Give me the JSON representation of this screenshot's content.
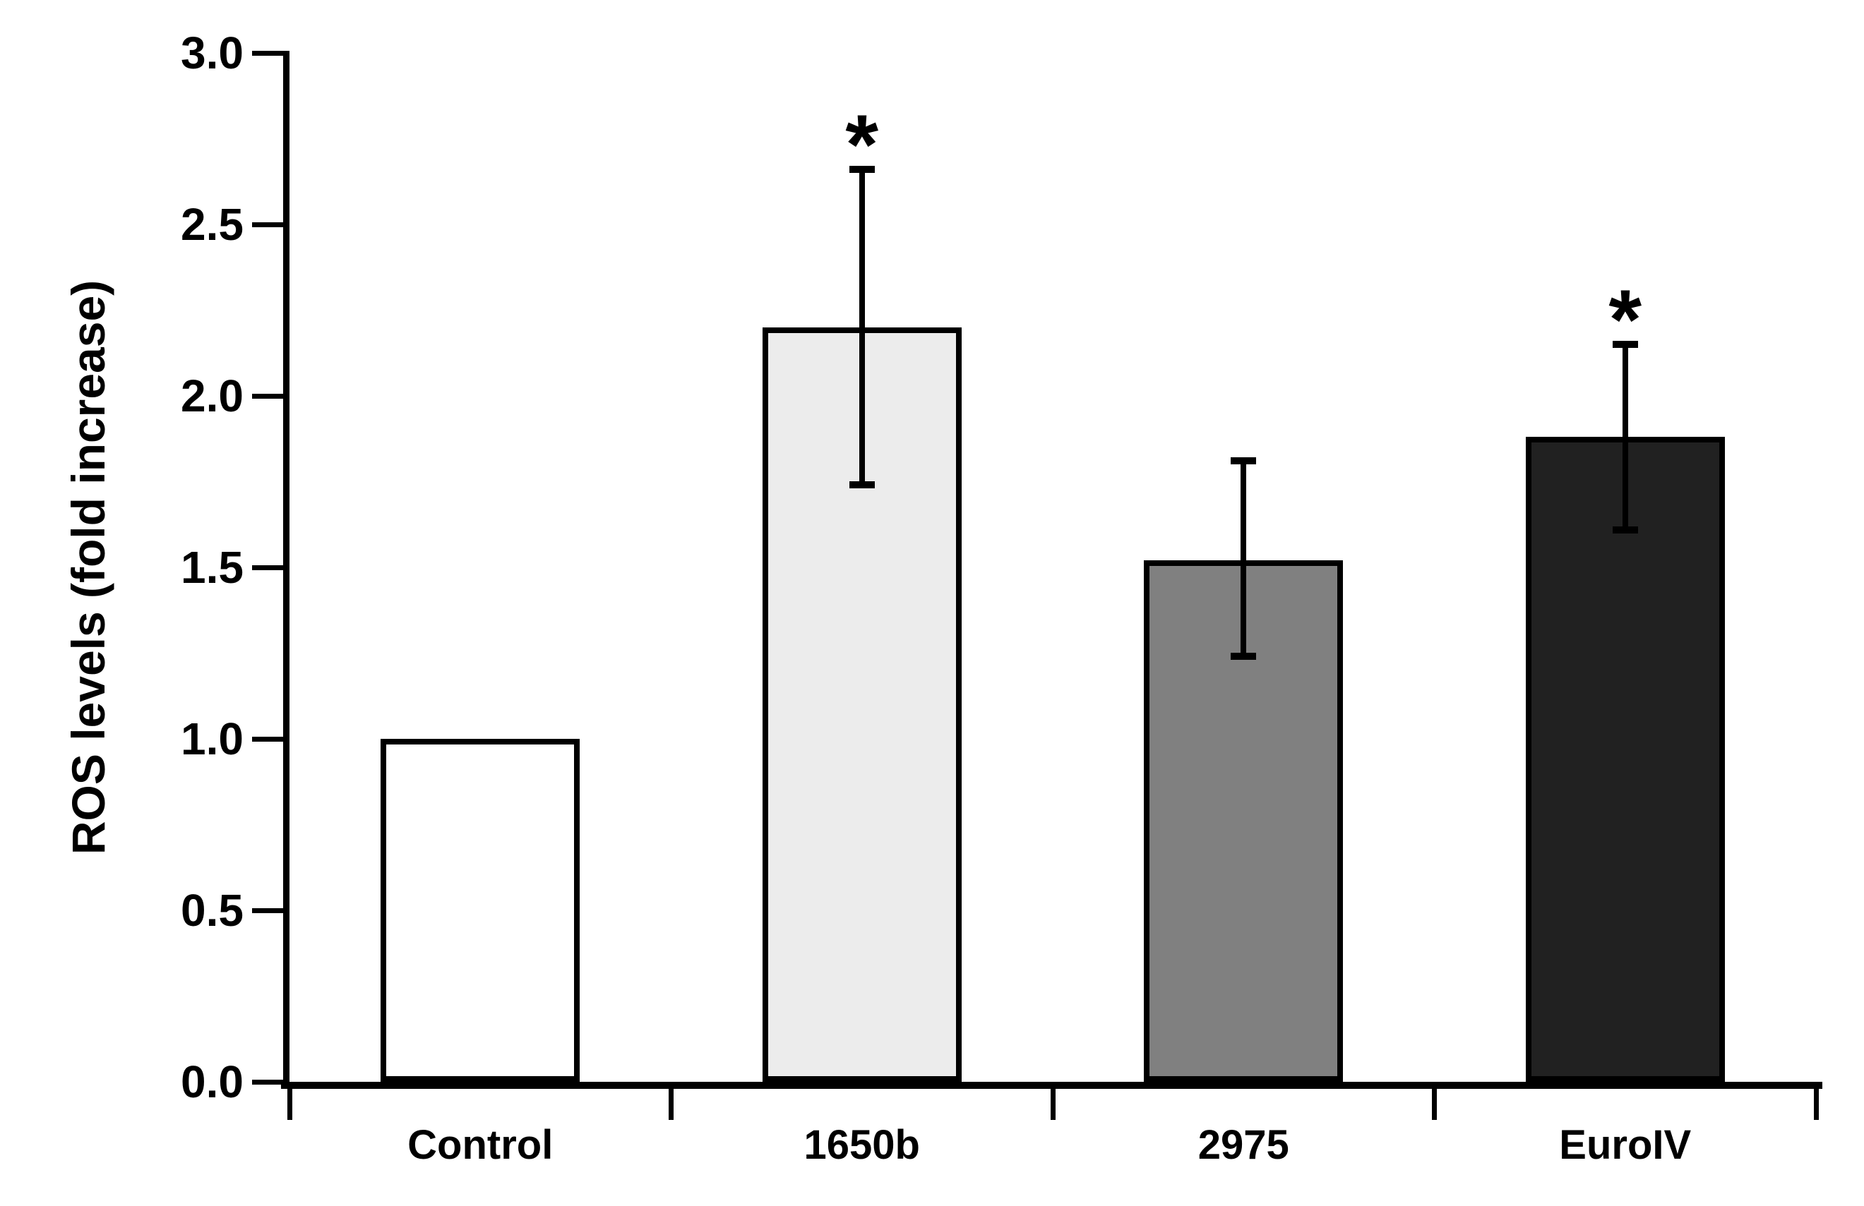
{
  "figure": {
    "background": "#ffffff",
    "text_color": "#000000"
  },
  "chart_data": {
    "type": "bar",
    "title": "",
    "xlabel": "",
    "ylabel": "ROS levels (fold increase)",
    "ylim": [
      0.0,
      3.0
    ],
    "ytick_step": 0.5,
    "yticks": [
      "3.0",
      "2.5",
      "2.0",
      "1.5",
      "1.0",
      "0.5",
      "0.0"
    ],
    "categories": [
      "Control",
      "1650b",
      "2975",
      "EuroIV"
    ],
    "values": [
      1.0,
      2.2,
      1.52,
      1.88
    ],
    "errors": [
      {
        "low": null,
        "high": null
      },
      {
        "low": 1.74,
        "high": 2.66
      },
      {
        "low": 1.24,
        "high": 1.81
      },
      {
        "low": 1.61,
        "high": 2.15
      }
    ],
    "significance": [
      "",
      "*",
      "",
      "*"
    ],
    "bar_fills": [
      "#ffffff",
      "#ececec",
      "#808080",
      "#212121"
    ],
    "bar_border_color": "#000000",
    "axis_color": "#000000",
    "grid": false,
    "legend": null
  }
}
